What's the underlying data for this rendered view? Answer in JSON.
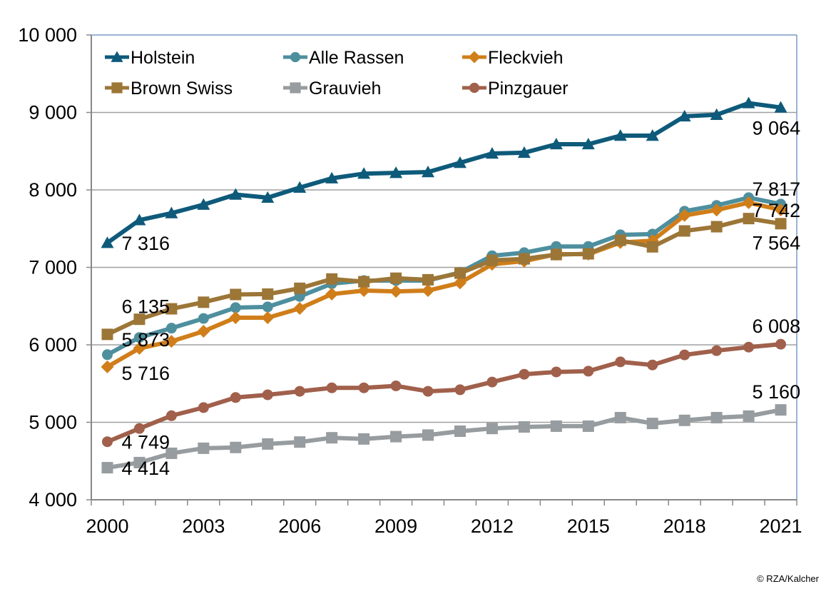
{
  "chart_data": {
    "type": "line",
    "title": "",
    "xlabel": "",
    "ylabel": "",
    "ylim": [
      4000,
      10000
    ],
    "yticks": [
      4000,
      5000,
      6000,
      7000,
      8000,
      9000,
      10000
    ],
    "ytick_labels": [
      "4 000",
      "5 000",
      "6 000",
      "7 000",
      "8 000",
      "9 000",
      "10 000"
    ],
    "x": [
      2000,
      2001,
      2002,
      2003,
      2004,
      2005,
      2006,
      2007,
      2008,
      2009,
      2010,
      2011,
      2012,
      2013,
      2014,
      2015,
      2016,
      2017,
      2018,
      2019,
      2020,
      2021
    ],
    "xtick_labels": [
      "2000",
      "2003",
      "2006",
      "2009",
      "2012",
      "2015",
      "2018",
      "2021"
    ],
    "grid": "horizontal",
    "legend_position": "top-left",
    "series": [
      {
        "name": "Holstein",
        "color": "#0E5A7A",
        "marker": "triangle",
        "values": [
          7316,
          7610,
          7700,
          7810,
          7940,
          7900,
          8030,
          8150,
          8210,
          8220,
          8230,
          8350,
          8470,
          8480,
          8590,
          8590,
          8700,
          8700,
          8950,
          8970,
          9120,
          9064
        ],
        "labels": {
          "first": "7 316",
          "last": "9 064"
        }
      },
      {
        "name": "Alle Rassen",
        "color": "#4E8F9E",
        "marker": "circle",
        "values": [
          5873,
          6095,
          6215,
          6340,
          6480,
          6490,
          6625,
          6790,
          6830,
          6830,
          6830,
          6935,
          7150,
          7190,
          7270,
          7270,
          7420,
          7430,
          7725,
          7800,
          7900,
          7817
        ],
        "labels": {
          "first": "5 873",
          "last": "7 817"
        }
      },
      {
        "name": "Fleckvieh",
        "color": "#D07E1A",
        "marker": "diamond",
        "values": [
          5716,
          5955,
          6045,
          6175,
          6350,
          6350,
          6470,
          6655,
          6700,
          6690,
          6700,
          6800,
          7040,
          7080,
          7170,
          7170,
          7320,
          7345,
          7670,
          7740,
          7835,
          7742
        ],
        "labels": {
          "first": "5 716",
          "last": "7 742"
        }
      },
      {
        "name": "Brown Swiss",
        "color": "#9C7637",
        "marker": "square",
        "values": [
          6135,
          6330,
          6465,
          6550,
          6650,
          6655,
          6730,
          6850,
          6815,
          6860,
          6840,
          6925,
          7090,
          7110,
          7165,
          7175,
          7350,
          7265,
          7470,
          7525,
          7630,
          7564
        ],
        "labels": {
          "first": "6 135",
          "last": "7 564"
        }
      },
      {
        "name": "Grauvieh",
        "color": "#969C9F",
        "marker": "square",
        "values": [
          4414,
          4480,
          4600,
          4665,
          4675,
          4720,
          4745,
          4800,
          4785,
          4815,
          4835,
          4885,
          4920,
          4940,
          4950,
          4950,
          5060,
          4985,
          5025,
          5060,
          5080,
          5160
        ],
        "labels": {
          "first": "4 414",
          "last": "5 160"
        }
      },
      {
        "name": "Pinzgauer",
        "color": "#A0604B",
        "marker": "circle",
        "values": [
          4749,
          4920,
          5085,
          5190,
          5320,
          5355,
          5400,
          5445,
          5445,
          5470,
          5400,
          5420,
          5520,
          5620,
          5650,
          5660,
          5780,
          5740,
          5870,
          5925,
          5970,
          6008
        ],
        "labels": {
          "first": "4 749",
          "last": "6 008"
        }
      }
    ]
  },
  "credit": "© RZA/Kalcher"
}
